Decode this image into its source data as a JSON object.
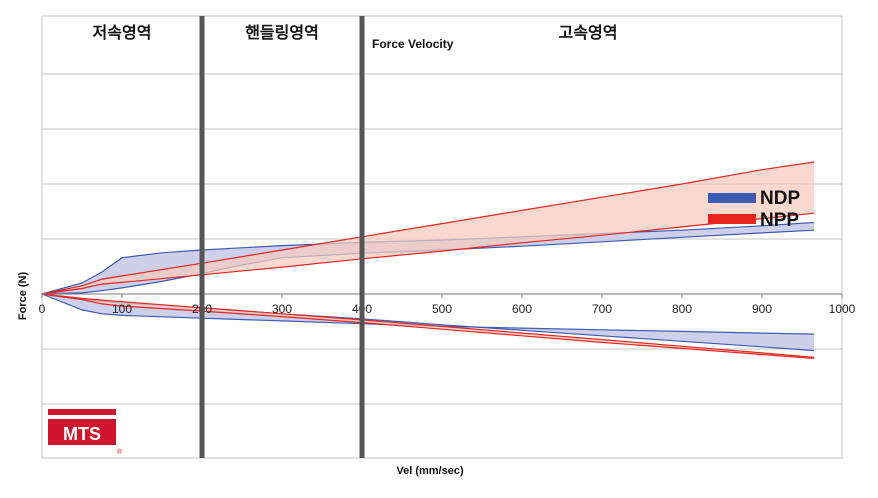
{
  "chart_data": {
    "type": "area",
    "title": "",
    "xlabel": "Vel (mm/sec)",
    "ylabel": "Force (N)",
    "xlim": [
      0,
      1000
    ],
    "x_ticks": [
      0,
      100,
      200,
      300,
      400,
      500,
      600,
      700,
      800,
      900,
      1000
    ],
    "grid": "horizontal",
    "legend": {
      "placement": "right",
      "entries": [
        {
          "name": "NDP",
          "color": "#3c5bb3"
        },
        {
          "name": "NPP",
          "color": "#e8251f"
        }
      ]
    },
    "regions": [
      {
        "label": "저속영역",
        "from": 0,
        "to": 200
      },
      {
        "label": "핸들링영역",
        "from": 200,
        "to": 400
      },
      {
        "label": "고속영역",
        "from": 400,
        "to": 965
      }
    ],
    "dividers": [
      200,
      400
    ],
    "annotations": [
      "Force Velocity"
    ],
    "series": [
      {
        "name": "NDP",
        "color": "#3c5bb3",
        "fill": "#c5c8e8",
        "bands": [
          {
            "upper": [
              [
                0,
                0
              ],
              [
                50,
                0.2
              ],
              [
                75,
                0.4
              ],
              [
                100,
                0.66
              ],
              [
                150,
                0.75
              ],
              [
                200,
                0.8
              ],
              [
                300,
                0.88
              ],
              [
                400,
                0.94
              ],
              [
                500,
                0.98
              ],
              [
                600,
                1.04
              ],
              [
                700,
                1.1
              ],
              [
                800,
                1.16
              ],
              [
                900,
                1.24
              ],
              [
                965,
                1.3
              ]
            ],
            "lower": [
              [
                0,
                0
              ],
              [
                50,
                0.02
              ],
              [
                75,
                0.06
              ],
              [
                100,
                0.11
              ],
              [
                150,
                0.23
              ],
              [
                200,
                0.37
              ],
              [
                240,
                0.5
              ],
              [
                300,
                0.66
              ],
              [
                400,
                0.74
              ],
              [
                500,
                0.8
              ],
              [
                600,
                0.87
              ],
              [
                700,
                0.95
              ],
              [
                800,
                1.03
              ],
              [
                900,
                1.11
              ],
              [
                965,
                1.16
              ]
            ]
          },
          {
            "upper": [
              [
                0,
                0
              ],
              [
                50,
                -0.1
              ],
              [
                75,
                -0.13
              ],
              [
                100,
                -0.16
              ],
              [
                200,
                -0.25
              ],
              [
                300,
                -0.36
              ],
              [
                400,
                -0.45
              ],
              [
                500,
                -0.56
              ],
              [
                600,
                -0.66
              ],
              [
                700,
                -0.76
              ],
              [
                800,
                -0.86
              ],
              [
                900,
                -0.96
              ],
              [
                965,
                -1.03
              ]
            ],
            "lower": [
              [
                0,
                0
              ],
              [
                50,
                -0.29
              ],
              [
                75,
                -0.36
              ],
              [
                100,
                -0.39
              ],
              [
                200,
                -0.44
              ],
              [
                300,
                -0.49
              ],
              [
                400,
                -0.54
              ],
              [
                500,
                -0.59
              ],
              [
                600,
                -0.62
              ],
              [
                700,
                -0.65
              ],
              [
                800,
                -0.68
              ],
              [
                900,
                -0.71
              ],
              [
                965,
                -0.73
              ]
            ]
          }
        ]
      },
      {
        "name": "NPP",
        "color": "#e8251f",
        "fill": "#f7cbbd",
        "bands": [
          {
            "upper": [
              [
                0,
                0
              ],
              [
                50,
                0.15
              ],
              [
                75,
                0.27
              ],
              [
                100,
                0.33
              ],
              [
                200,
                0.56
              ],
              [
                300,
                0.8
              ],
              [
                400,
                1.04
              ],
              [
                500,
                1.28
              ],
              [
                600,
                1.52
              ],
              [
                700,
                1.76
              ],
              [
                800,
                2.0
              ],
              [
                900,
                2.26
              ],
              [
                965,
                2.4
              ]
            ],
            "lower": [
              [
                0,
                0
              ],
              [
                50,
                0.1
              ],
              [
                75,
                0.18
              ],
              [
                100,
                0.21
              ],
              [
                200,
                0.35
              ],
              [
                300,
                0.49
              ],
              [
                400,
                0.64
              ],
              [
                500,
                0.78
              ],
              [
                600,
                0.93
              ],
              [
                700,
                1.07
              ],
              [
                800,
                1.22
              ],
              [
                900,
                1.37
              ],
              [
                965,
                1.47
              ]
            ]
          },
          {
            "upper": [
              [
                0,
                0
              ],
              [
                50,
                -0.08
              ],
              [
                75,
                -0.11
              ],
              [
                100,
                -0.14
              ],
              [
                200,
                -0.25
              ],
              [
                300,
                -0.36
              ],
              [
                400,
                -0.47
              ],
              [
                500,
                -0.59
              ],
              [
                600,
                -0.71
              ],
              [
                700,
                -0.83
              ],
              [
                800,
                -0.95
              ],
              [
                900,
                -1.07
              ],
              [
                965,
                -1.15
              ]
            ],
            "lower": [
              [
                0,
                0
              ],
              [
                50,
                -0.1
              ],
              [
                75,
                -0.18
              ],
              [
                100,
                -0.22
              ],
              [
                200,
                -0.31
              ],
              [
                300,
                -0.41
              ],
              [
                400,
                -0.52
              ],
              [
                500,
                -0.64
              ],
              [
                600,
                -0.76
              ],
              [
                700,
                -0.88
              ],
              [
                800,
                -0.99
              ],
              [
                900,
                -1.1
              ],
              [
                965,
                -1.17
              ]
            ]
          }
        ]
      }
    ]
  },
  "logo": {
    "text": "MTS",
    "mark": "®",
    "color": "#d0162f"
  }
}
